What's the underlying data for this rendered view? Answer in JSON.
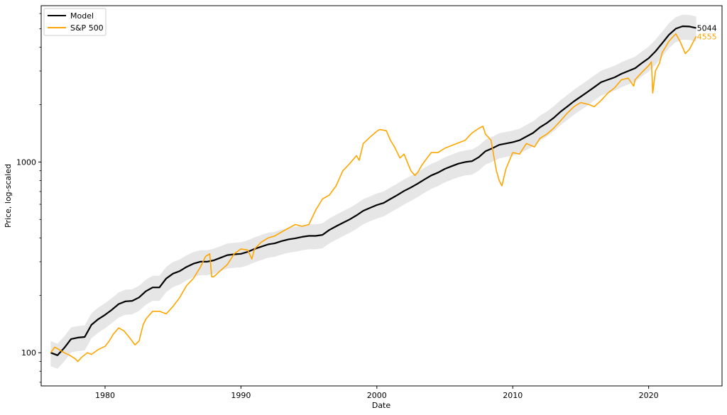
{
  "chart_data": {
    "type": "line",
    "xlabel": "Date",
    "ylabel": "Price, log-scaled",
    "y_scale": "log",
    "xlim": [
      1975.3,
      2025.4
    ],
    "ylim": [
      67,
      6600
    ],
    "x_ticks": [
      1980,
      1990,
      2000,
      2010,
      2020
    ],
    "x_tick_labels": [
      "1980",
      "1990",
      "2000",
      "2010",
      "2020"
    ],
    "y_ticks": [
      100,
      1000
    ],
    "y_tick_labels": [
      "100",
      "1000"
    ],
    "y_minor_ticks": [
      70,
      80,
      90,
      200,
      300,
      400,
      500,
      600,
      700,
      800,
      900,
      2000,
      3000,
      4000,
      5000,
      6000
    ],
    "grid": false,
    "legend_position": "top-left",
    "band": {
      "lower_factor": 0.85,
      "upper_factor": 1.15,
      "color": "#e6e6e6"
    },
    "series": [
      {
        "name": "Model",
        "color": "#000000",
        "end_label": "5044",
        "x": [
          1976.0,
          1976.5,
          1977.0,
          1977.5,
          1978.0,
          1978.5,
          1979.0,
          1979.5,
          1980.0,
          1980.5,
          1981.0,
          1981.5,
          1982.0,
          1982.5,
          1983.0,
          1983.5,
          1984.0,
          1984.5,
          1985.0,
          1985.5,
          1986.0,
          1986.5,
          1987.0,
          1987.5,
          1988.0,
          1988.5,
          1989.0,
          1989.5,
          1990.0,
          1990.5,
          1991.0,
          1991.5,
          1992.0,
          1992.5,
          1993.0,
          1993.5,
          1994.0,
          1994.5,
          1995.0,
          1995.5,
          1996.0,
          1996.5,
          1997.0,
          1997.5,
          1998.0,
          1998.5,
          1999.0,
          1999.5,
          2000.0,
          2000.5,
          2001.0,
          2001.5,
          2002.0,
          2002.5,
          2003.0,
          2003.5,
          2004.0,
          2004.5,
          2005.0,
          2005.5,
          2006.0,
          2006.5,
          2007.0,
          2007.5,
          2008.0,
          2008.5,
          2009.0,
          2009.5,
          2010.0,
          2010.5,
          2011.0,
          2011.5,
          2012.0,
          2012.5,
          2013.0,
          2013.5,
          2014.0,
          2014.5,
          2015.0,
          2015.5,
          2016.0,
          2016.5,
          2017.0,
          2017.5,
          2018.0,
          2018.5,
          2019.0,
          2019.5,
          2020.0,
          2020.5,
          2021.0,
          2021.5,
          2022.0,
          2022.5,
          2023.0,
          2023.5
        ],
        "values": [
          100,
          97,
          106,
          118,
          120,
          121,
          140,
          150,
          158,
          168,
          180,
          186,
          187,
          195,
          210,
          220,
          220,
          245,
          260,
          268,
          282,
          293,
          300,
          300,
          305,
          315,
          325,
          328,
          330,
          338,
          350,
          360,
          370,
          375,
          385,
          393,
          398,
          405,
          410,
          410,
          415,
          440,
          460,
          480,
          500,
          525,
          555,
          575,
          595,
          610,
          640,
          670,
          705,
          735,
          770,
          810,
          850,
          880,
          920,
          950,
          980,
          1000,
          1010,
          1060,
          1140,
          1180,
          1230,
          1250,
          1270,
          1300,
          1360,
          1420,
          1520,
          1600,
          1700,
          1830,
          1950,
          2080,
          2200,
          2330,
          2470,
          2620,
          2700,
          2780,
          2900,
          3000,
          3100,
          3300,
          3500,
          3800,
          4200,
          4650,
          5000,
          5150,
          5130,
          5044
        ]
      },
      {
        "name": "S&P 500",
        "color": "#ffa500",
        "end_label": "4555",
        "x": [
          1976.0,
          1976.3,
          1976.6,
          1977.0,
          1977.4,
          1977.8,
          1978.0,
          1978.3,
          1978.7,
          1979.0,
          1979.5,
          1980.0,
          1980.3,
          1980.6,
          1981.0,
          1981.4,
          1981.8,
          1982.2,
          1982.5,
          1982.8,
          1983.0,
          1983.5,
          1984.0,
          1984.5,
          1985.0,
          1985.5,
          1986.0,
          1986.5,
          1987.0,
          1987.4,
          1987.7,
          1987.85,
          1988.0,
          1988.5,
          1989.0,
          1989.5,
          1990.0,
          1990.5,
          1990.8,
          1991.0,
          1991.5,
          1992.0,
          1992.5,
          1993.0,
          1993.5,
          1994.0,
          1994.5,
          1995.0,
          1995.5,
          1996.0,
          1996.5,
          1997.0,
          1997.5,
          1998.0,
          1998.5,
          1998.7,
          1999.0,
          1999.5,
          2000.0,
          2000.2,
          2000.7,
          2001.0,
          2001.3,
          2001.7,
          2002.0,
          2002.5,
          2002.8,
          2003.0,
          2003.3,
          2003.7,
          2004.0,
          2004.5,
          2005.0,
          2005.5,
          2006.0,
          2006.5,
          2007.0,
          2007.5,
          2007.8,
          2008.0,
          2008.4,
          2008.8,
          2009.0,
          2009.2,
          2009.5,
          2010.0,
          2010.5,
          2011.0,
          2011.6,
          2012.0,
          2012.5,
          2013.0,
          2013.5,
          2014.0,
          2014.5,
          2015.0,
          2015.6,
          2016.0,
          2016.5,
          2017.0,
          2017.5,
          2018.0,
          2018.5,
          2018.9,
          2019.0,
          2019.5,
          2020.0,
          2020.2,
          2020.3,
          2020.5,
          2020.8,
          2021.0,
          2021.5,
          2022.0,
          2022.3,
          2022.7,
          2023.0,
          2023.5
        ],
        "values": [
          100,
          107,
          104,
          100,
          97,
          93,
          90,
          95,
          100,
          98,
          104,
          108,
          115,
          125,
          135,
          130,
          120,
          110,
          115,
          140,
          150,
          165,
          165,
          160,
          175,
          195,
          225,
          245,
          280,
          320,
          330,
          250,
          250,
          270,
          290,
          330,
          350,
          345,
          310,
          350,
          380,
          400,
          410,
          430,
          450,
          470,
          460,
          470,
          560,
          640,
          670,
          750,
          900,
          980,
          1080,
          1020,
          1250,
          1350,
          1450,
          1480,
          1460,
          1300,
          1200,
          1050,
          1100,
          900,
          850,
          880,
          960,
          1050,
          1120,
          1120,
          1180,
          1220,
          1260,
          1300,
          1420,
          1500,
          1540,
          1400,
          1300,
          900,
          800,
          750,
          920,
          1120,
          1100,
          1250,
          1200,
          1330,
          1400,
          1500,
          1640,
          1800,
          1950,
          2050,
          2000,
          1950,
          2100,
          2300,
          2450,
          2700,
          2750,
          2500,
          2700,
          2950,
          3200,
          3350,
          2300,
          3000,
          3300,
          3750,
          4300,
          4700,
          4300,
          3700,
          3900,
          4555
        ]
      }
    ]
  }
}
